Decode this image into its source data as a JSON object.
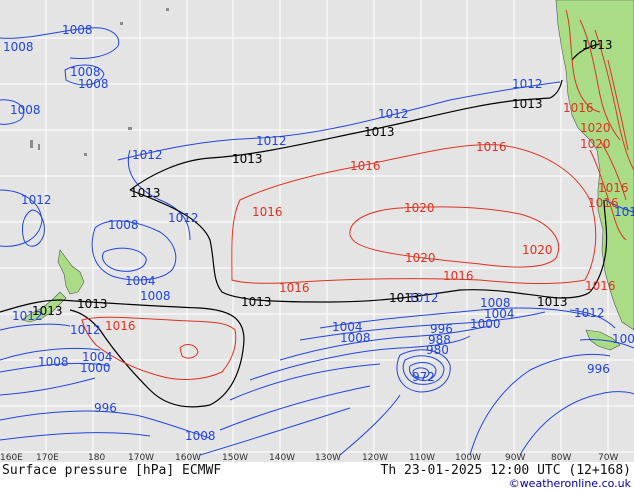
{
  "map": {
    "footer_left": "Surface pressure [hPa] ECMWF",
    "footer_right": "Th 23-01-2025 12:00 UTC (12+168)",
    "credit": "©weatheronline.co.uk",
    "longitude_labels": [
      "160E",
      "170E",
      "180",
      "170W",
      "160W",
      "150W",
      "140W",
      "130W",
      "120W",
      "110W",
      "100W",
      "90W",
      "80W",
      "70W"
    ],
    "colors": {
      "ocean": "#e4e4e4",
      "land": "#a9dc84",
      "grid": "#ffffff",
      "low_isobar": "#2244dd",
      "standard_isobar": "#000000",
      "high_isobar": "#dd3322"
    },
    "isobar_labels": {
      "blue": [
        "1008",
        "1008",
        "1008",
        "1008",
        "1008",
        "1012",
        "1012",
        "1012",
        "1012",
        "1012",
        "1008",
        "1004",
        "1008",
        "1012",
        "1012",
        "1008",
        "1004",
        "1000",
        "996",
        "1008",
        "1004",
        "996",
        "988",
        "980",
        "972",
        "1008",
        "1004",
        "1000",
        "1012",
        "1008",
        "1012",
        "1012",
        "1000",
        "996",
        "1012"
      ],
      "black": [
        "1013",
        "1013",
        "1013",
        "1013",
        "1013",
        "1013",
        "1013",
        "1013",
        "1013",
        "1013"
      ],
      "red": [
        "1016",
        "1016",
        "1016",
        "1016",
        "1020",
        "1020",
        "1020",
        "1016",
        "1016",
        "1016",
        "1016",
        "1016",
        "1020",
        "1020",
        "1016"
      ]
    }
  }
}
